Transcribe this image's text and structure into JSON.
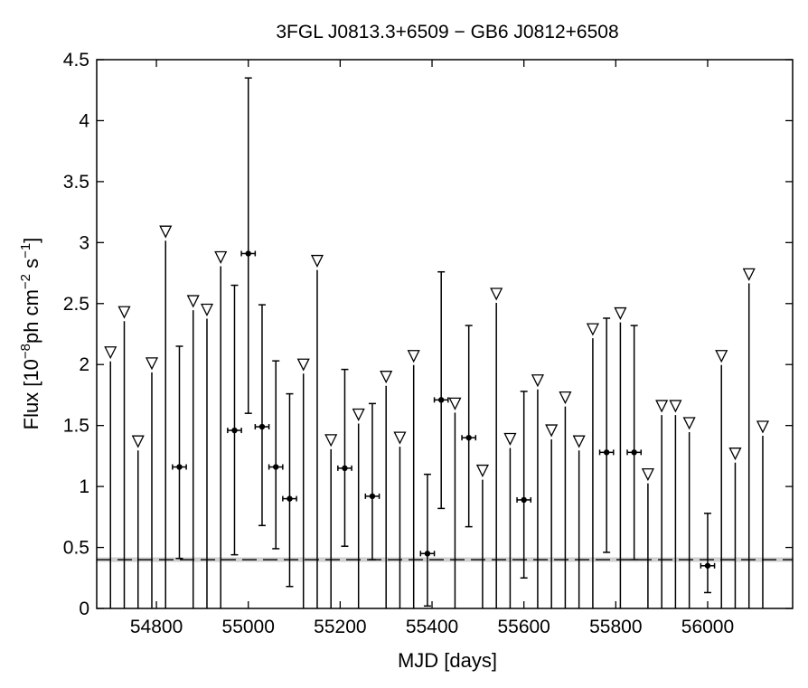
{
  "chart_data": {
    "type": "scatter",
    "title": "3FGL J0813.3+6509 − GB6 J0812+6508",
    "xlabel": "MJD [days]",
    "ylabel": {
      "pre": "Flux [10",
      "exp1": "−8",
      "mid1": "ph cm",
      "exp2": "−2",
      "mid2": " s",
      "exp3": "−1",
      "post": "]"
    },
    "xlim": [
      54670,
      56185
    ],
    "ylim": [
      0,
      4.5
    ],
    "xticks": [
      54800,
      55000,
      55200,
      55400,
      55600,
      55800,
      56000
    ],
    "xtick_labels": [
      "54800",
      "55000",
      "55200",
      "55400",
      "55600",
      "55800",
      "56000"
    ],
    "yticks": [
      0,
      0.5,
      1,
      1.5,
      2,
      2.5,
      3,
      3.5,
      4,
      4.5
    ],
    "ytick_labels": [
      "0",
      "0.5",
      "1",
      "1.5",
      "2",
      "2.5",
      "3",
      "3.5",
      "4",
      "4.5"
    ],
    "grid": false,
    "baseline": {
      "y": 0.4,
      "style": "dashed"
    },
    "bin_halfwidth": 15,
    "detections": [
      {
        "x": 54850,
        "y": 1.16,
        "ylow": 0.41,
        "yhigh": 2.15
      },
      {
        "x": 54970,
        "y": 1.46,
        "ylow": 0.44,
        "yhigh": 2.65
      },
      {
        "x": 55000,
        "y": 2.91,
        "ylow": 1.6,
        "yhigh": 4.35
      },
      {
        "x": 55030,
        "y": 1.49,
        "ylow": 0.68,
        "yhigh": 2.49
      },
      {
        "x": 55060,
        "y": 1.16,
        "ylow": 0.49,
        "yhigh": 2.03
      },
      {
        "x": 55090,
        "y": 0.9,
        "ylow": 0.18,
        "yhigh": 1.76
      },
      {
        "x": 55210,
        "y": 1.15,
        "ylow": 0.51,
        "yhigh": 1.96
      },
      {
        "x": 55270,
        "y": 0.92,
        "ylow": 0.4,
        "yhigh": 1.68
      },
      {
        "x": 55390,
        "y": 0.45,
        "ylow": 0.02,
        "yhigh": 1.1
      },
      {
        "x": 55420,
        "y": 1.71,
        "ylow": 0.82,
        "yhigh": 2.76
      },
      {
        "x": 55480,
        "y": 1.4,
        "ylow": 0.67,
        "yhigh": 2.32
      },
      {
        "x": 55600,
        "y": 0.89,
        "ylow": 0.25,
        "yhigh": 1.78
      },
      {
        "x": 55780,
        "y": 1.28,
        "ylow": 0.46,
        "yhigh": 2.38
      },
      {
        "x": 55840,
        "y": 1.28,
        "ylow": 0.4,
        "yhigh": 2.32
      },
      {
        "x": 56000,
        "y": 0.35,
        "ylow": 0.13,
        "yhigh": 0.78
      }
    ],
    "upper_limits": [
      {
        "x": 54700,
        "y": 2.1
      },
      {
        "x": 54730,
        "y": 2.43
      },
      {
        "x": 54760,
        "y": 1.37
      },
      {
        "x": 54790,
        "y": 2.01
      },
      {
        "x": 54820,
        "y": 3.09
      },
      {
        "x": 54880,
        "y": 2.52
      },
      {
        "x": 54910,
        "y": 2.45
      },
      {
        "x": 54940,
        "y": 2.88
      },
      {
        "x": 55120,
        "y": 2.0
      },
      {
        "x": 55150,
        "y": 2.85
      },
      {
        "x": 55180,
        "y": 1.38
      },
      {
        "x": 55240,
        "y": 1.59
      },
      {
        "x": 55300,
        "y": 1.9
      },
      {
        "x": 55330,
        "y": 1.4
      },
      {
        "x": 55360,
        "y": 2.07
      },
      {
        "x": 55450,
        "y": 1.68
      },
      {
        "x": 55510,
        "y": 1.13
      },
      {
        "x": 55540,
        "y": 2.58
      },
      {
        "x": 55570,
        "y": 1.39
      },
      {
        "x": 55630,
        "y": 1.87
      },
      {
        "x": 55660,
        "y": 1.46
      },
      {
        "x": 55690,
        "y": 1.73
      },
      {
        "x": 55720,
        "y": 1.37
      },
      {
        "x": 55750,
        "y": 2.29
      },
      {
        "x": 55810,
        "y": 2.42
      },
      {
        "x": 55870,
        "y": 1.1
      },
      {
        "x": 55900,
        "y": 1.66
      },
      {
        "x": 55930,
        "y": 1.66
      },
      {
        "x": 55960,
        "y": 1.52
      },
      {
        "x": 56030,
        "y": 2.07
      },
      {
        "x": 56060,
        "y": 1.27
      },
      {
        "x": 56090,
        "y": 2.74
      },
      {
        "x": 56120,
        "y": 1.49
      }
    ]
  }
}
